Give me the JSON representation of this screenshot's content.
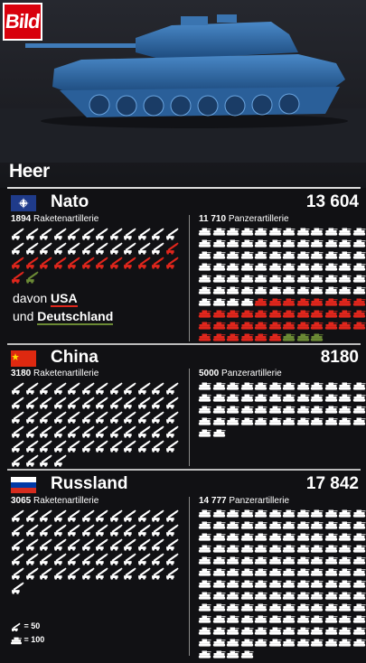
{
  "brand": {
    "logo": "Bild"
  },
  "page": {
    "section_title": "Heer"
  },
  "colors": {
    "white": "#ffffff",
    "usa": "#e0261c",
    "germany": "#6b8a35",
    "bg": "#111114"
  },
  "icons": {
    "rocket": "rocket-artillery-icon",
    "tank": "tank-icon"
  },
  "countries": [
    {
      "name": "Nato",
      "flag": "nato-flag-icon",
      "total": "13 604",
      "rocket_label_num": "1894",
      "rocket_label": "Raketenartillerie",
      "tank_label_num": "11 710",
      "tank_label": "Panzerartillerie",
      "rocket_units": 38,
      "rocket_usa_units": 14,
      "rocket_de_units": 1,
      "tank_units": 117,
      "tank_usa_units": 38,
      "tank_de_units": 3
    },
    {
      "name": "China",
      "flag": "china-flag-icon",
      "total": "8180",
      "rocket_label_num": "3180",
      "rocket_label": "Raketenartillerie",
      "tank_label_num": "5000",
      "tank_label": "Panzerartillerie",
      "rocket_units": 64,
      "tank_units": 50
    },
    {
      "name": "Russland",
      "flag": "russia-flag-icon",
      "total": "17 842",
      "rocket_label_num": "3065",
      "rocket_label": "Raketenartillerie",
      "tank_label_num": "14 777",
      "tank_label": "Panzerartillerie",
      "rocket_units": 61,
      "tank_units": 148
    }
  ],
  "davon": {
    "prefix": "davon",
    "usa": "USA",
    "und": "und",
    "de": "Deutschland"
  },
  "legend": {
    "rocket": "= 50",
    "tank": "= 100"
  }
}
